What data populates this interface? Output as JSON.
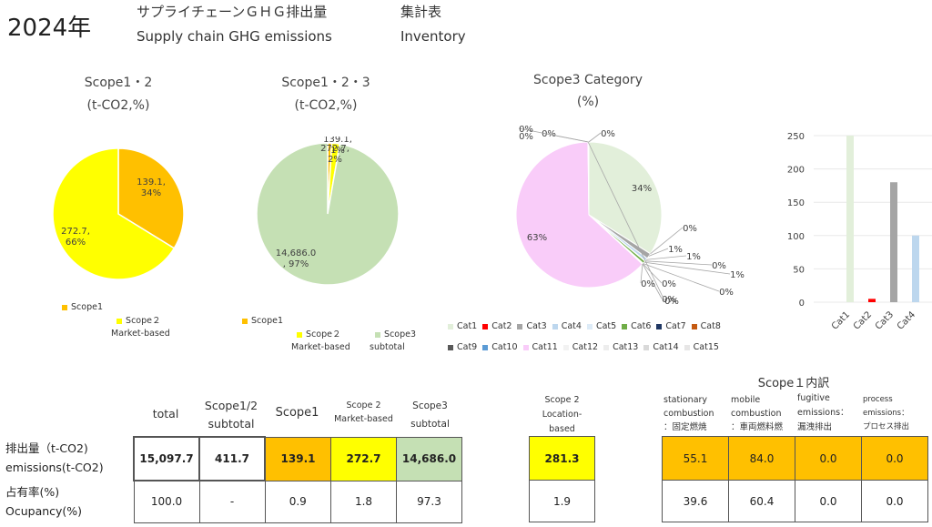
{
  "header": {
    "year": "2024年",
    "title_jp": "サプライチェーンＧＨＧ排出量",
    "title_en": "Supply chain GHG emissions",
    "sheet_jp": "集計表",
    "sheet_en": "Inventory"
  },
  "colors": {
    "scope1": "#FFC000",
    "scope2": "#FFFF00",
    "scope3": "#C5E0B4",
    "cat11": "#F9CCF9",
    "cat1": "#E2EFDA"
  },
  "chart_data": [
    {
      "type": "pie",
      "title": "Scope1・2",
      "subtitle": "(t-CO2,%)",
      "slices": [
        {
          "label": "139.1,\n34%",
          "value": 139.1,
          "color": "#FFC000"
        },
        {
          "label": "272.7,\n66%",
          "value": 272.7,
          "color": "#FFFF00"
        }
      ],
      "legend": [
        {
          "name": "Scope1",
          "color": "#FFC000"
        },
        {
          "name": "Scope２\nMarket-based",
          "color": "#FFFF00"
        }
      ]
    },
    {
      "type": "pie",
      "title": "Scope1・2・3",
      "subtitle": "(t-CO2,%)",
      "slices": [
        {
          "label": "139.1,\n1%",
          "value": 139.1,
          "color": "#FFC000"
        },
        {
          "label": "272.7,\n2%",
          "value": 272.7,
          "color": "#FFFF00"
        },
        {
          "label": "14,686.0\n, 97%",
          "value": 14686.0,
          "color": "#C5E0B4"
        }
      ],
      "legend": [
        {
          "name": "Scope1",
          "color": "#FFC000"
        },
        {
          "name": "Scope２\nMarket-based",
          "color": "#FFFF00"
        },
        {
          "name": "Scope3\nsubtotal",
          "color": "#C5E0B4"
        }
      ]
    },
    {
      "type": "pie",
      "title": "Scope3 Category",
      "subtitle": "(%)",
      "slices": [
        {
          "name": "Cat1",
          "value": 34,
          "label": "34%",
          "color": "#E2EFDA"
        },
        {
          "name": "Cat2",
          "value": 0.03,
          "label": "0%",
          "color": "#FF0000"
        },
        {
          "name": "Cat3",
          "value": 1.2,
          "label": "1%",
          "color": "#A5A5A5"
        },
        {
          "name": "Cat4",
          "value": 0.7,
          "label": "1%",
          "color": "#BDD7EE"
        },
        {
          "name": "Cat5",
          "value": 0.1,
          "label": "0%",
          "color": "#DDEBF7"
        },
        {
          "name": "Cat6",
          "value": 0.6,
          "label": "1%",
          "color": "#70AD47"
        },
        {
          "name": "Cat7",
          "value": 0.1,
          "label": "0%",
          "color": "#203864"
        },
        {
          "name": "Cat8",
          "value": 0.05,
          "label": "0%",
          "color": "#C55A11"
        },
        {
          "name": "Cat9",
          "value": 0.05,
          "label": "0%",
          "color": "#595959"
        },
        {
          "name": "Cat10",
          "value": 0.05,
          "label": "0%",
          "color": "#5B9BD5"
        },
        {
          "name": "Cat11",
          "value": 63,
          "label": "63%",
          "color": "#F9CCF9"
        },
        {
          "name": "Cat12",
          "value": 0.05,
          "label": "0%",
          "color": "#F2F2F2"
        },
        {
          "name": "Cat13",
          "value": 0.05,
          "label": "0%",
          "color": "#EDEDED"
        },
        {
          "name": "Cat14",
          "value": 0.05,
          "label": "0%",
          "color": "#D9D9D9"
        },
        {
          "name": "Cat15",
          "value": 0.05,
          "label": "0%",
          "color": "#E7E6E6"
        }
      ]
    },
    {
      "type": "bar",
      "categories": [
        "Cat1",
        "Cat2",
        "Cat3",
        "Cat4"
      ],
      "values": [
        250,
        5,
        180,
        100
      ],
      "colors": [
        "#E2EFDA",
        "#FF0000",
        "#A5A5A5",
        "#BDD7EE"
      ],
      "ylim": [
        0,
        250
      ],
      "yticks": [
        "0",
        "50",
        "100",
        "150",
        "200",
        "250"
      ]
    }
  ],
  "tables": {
    "row_labels": [
      "排出量（t-CO2)",
      "emissions(t-CO2)",
      "占有率(%)",
      "Ocupancy(%)"
    ],
    "main": {
      "headers": [
        "total",
        "Scope1/2\nsubtotal",
        "Scope1",
        "Scope 2\nMarket-based",
        "Scope3\nsubtotal"
      ],
      "emissions": [
        "15,097.7",
        "411.7",
        "139.1",
        "272.7",
        "14,686.0"
      ],
      "occupancy": [
        "100.0",
        "-",
        "0.9",
        "1.8",
        "97.3"
      ]
    },
    "location": {
      "header": "Scope 2\nLocation-\nbased",
      "emissions": "281.3",
      "occupancy": "1.9"
    },
    "scope1_breakdown": {
      "title": "Scope１内訳",
      "headers": [
        "stationary\ncombustion\n：固定燃焼",
        "mobile\ncombustion\n：車両燃料燃",
        "fugitive\nemissions：\n漏洩排出",
        "process\nemissions：\nプロセス排出"
      ],
      "emissions": [
        "55.1",
        "84.0",
        "0.0",
        "0.0"
      ],
      "occupancy": [
        "39.6",
        "60.4",
        "0.0",
        "0.0"
      ]
    }
  }
}
